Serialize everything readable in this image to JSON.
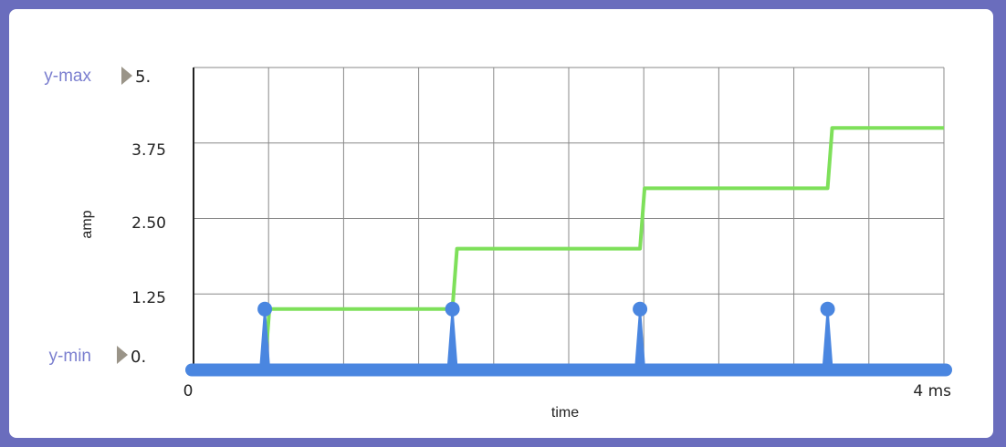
{
  "controls": {
    "ymax_label": "y-max",
    "ymin_label": "y-min",
    "ymax_value": "5.",
    "ymin_value": "0."
  },
  "chart_data": {
    "type": "line",
    "xlabel": "time",
    "ylabel": "amp",
    "xlim": [
      0,
      4
    ],
    "ylim": [
      0,
      5
    ],
    "x_tick_labels": [
      "0",
      "4 ms"
    ],
    "y_tick_labels": [
      "3.75",
      "2.50",
      "1.25"
    ],
    "y_tick_values": [
      3.75,
      2.5,
      1.25
    ],
    "x_grid_count": 10,
    "y_grid_count": 4,
    "grid": true,
    "series": [
      {
        "name": "",
        "style": "step",
        "color": "#7ee05a",
        "x": [
          0,
          0.38,
          0.38,
          1.38,
          1.38,
          2.38,
          2.38,
          3.38,
          3.38,
          4.0
        ],
        "y": [
          0,
          0,
          1,
          1,
          2,
          2,
          3,
          3,
          4,
          4
        ]
      },
      {
        "name": "",
        "style": "impulse",
        "color": "#4a86e0",
        "x": [
          0.38,
          1.38,
          2.38,
          3.38
        ],
        "y": [
          1,
          1,
          1,
          1
        ]
      }
    ]
  },
  "colors": {
    "frame": "#6a6dbd",
    "grid": "#888888",
    "control_label": "#7b7fcf",
    "control_arrow": "#9a9488"
  }
}
